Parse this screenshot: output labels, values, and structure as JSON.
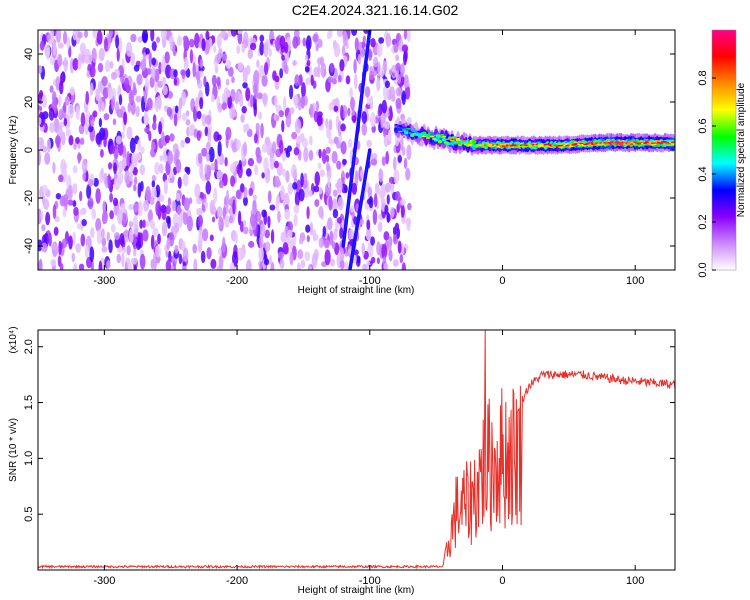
{
  "title": "C2E4.2024.321.16.14.G02",
  "chart_data": [
    {
      "type": "heatmap",
      "xlabel": "Height of straight line (km)",
      "ylabel": "Frequency (Hz)",
      "xlim": [
        -350,
        130
      ],
      "ylim": [
        -50,
        50
      ],
      "xticks": [
        -300,
        -200,
        -100,
        0,
        100
      ],
      "yticks": [
        -40,
        -20,
        0,
        20,
        40
      ],
      "colorbar": {
        "label": "Normalized spectral amplitude",
        "range": [
          0,
          1
        ],
        "ticks": [
          "0.0",
          "0.2",
          "0.4",
          "0.6",
          "0.8"
        ],
        "colors": [
          "#ffffff",
          "#cc88ff",
          "#8800ff",
          "#0000ff",
          "#00ffff",
          "#00ff00",
          "#ffff00",
          "#ff8800",
          "#ff0000",
          "#ff0088"
        ]
      },
      "features": {
        "noise_region_x": [
          -350,
          -70
        ],
        "noise_amplitude": 0.25,
        "tilted_line": [
          [
            -120,
            -40
          ],
          [
            -100,
            50
          ]
        ],
        "tilted_line_2": [
          [
            -115,
            -50
          ],
          [
            -100,
            0
          ]
        ],
        "signal_ridge": [
          {
            "x": -80,
            "y": 9,
            "amp": 0.4
          },
          {
            "x": -60,
            "y": 6,
            "amp": 0.6
          },
          {
            "x": -40,
            "y": 4,
            "amp": 0.7
          },
          {
            "x": -20,
            "y": 2,
            "amp": 0.75
          },
          {
            "x": 0,
            "y": 2,
            "amp": 0.85
          },
          {
            "x": 40,
            "y": 2,
            "amp": 0.8
          },
          {
            "x": 80,
            "y": 3,
            "amp": 0.95
          },
          {
            "x": 130,
            "y": 3,
            "amp": 0.9
          }
        ]
      }
    },
    {
      "type": "line",
      "xlabel": "Height of straight line (km)",
      "ylabel": "SNR (10 * v/v)",
      "multiplier": "(x10⁴)",
      "xlim": [
        -350,
        130
      ],
      "ylim": [
        0,
        2.15
      ],
      "xticks": [
        -300,
        -200,
        -100,
        0,
        100
      ],
      "yticks": [
        "0.5",
        "1.0",
        "1.5",
        "2.0"
      ],
      "ytick_values": [
        0.5,
        1.0,
        1.5,
        2.0
      ],
      "series": [
        {
          "color": "#e8302a",
          "envelope": [
            [
              -350,
              0.03
            ],
            [
              -100,
              0.03
            ],
            [
              -45,
              0.03
            ],
            [
              -40,
              0.35
            ],
            [
              -35,
              0.7
            ],
            [
              -25,
              0.8
            ],
            [
              -20,
              0.95
            ],
            [
              -15,
              1.2
            ],
            [
              -10,
              1.25
            ],
            [
              -5,
              1.3
            ],
            [
              0,
              1.35
            ],
            [
              10,
              1.4
            ],
            [
              20,
              1.65
            ],
            [
              30,
              1.75
            ],
            [
              60,
              1.75
            ],
            [
              90,
              1.7
            ],
            [
              130,
              1.66
            ]
          ],
          "spike": {
            "x": -13,
            "y": 2.15
          }
        }
      ]
    }
  ]
}
